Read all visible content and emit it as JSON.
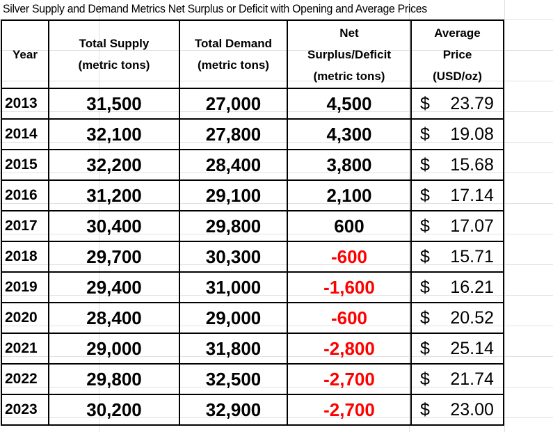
{
  "title": "Silver Supply and Demand Metrics Net Surplus or Deficit with Opening and Average Prices",
  "headers": {
    "year": "Year",
    "supply": [
      "Total Supply",
      "(metric tons)"
    ],
    "demand": [
      "Total Demand",
      "(metric tons)"
    ],
    "net": [
      "Net",
      "Surplus/Deficit",
      "(metric tons)"
    ],
    "price": [
      "Average",
      "Price",
      "(USD/oz)"
    ]
  },
  "currency_symbol": "$",
  "negative_color": "#ff0000",
  "rows": [
    {
      "year": "2013",
      "supply": "31,500",
      "demand": "27,000",
      "net": "4,500",
      "price": "23.79"
    },
    {
      "year": "2014",
      "supply": "32,100",
      "demand": "27,800",
      "net": "4,300",
      "price": "19.08"
    },
    {
      "year": "2015",
      "supply": "32,200",
      "demand": "28,400",
      "net": "3,800",
      "price": "15.68"
    },
    {
      "year": "2016",
      "supply": "31,200",
      "demand": "29,100",
      "net": "2,100",
      "price": "17.14"
    },
    {
      "year": "2017",
      "supply": "30,400",
      "demand": "29,800",
      "net": "600",
      "price": "17.07"
    },
    {
      "year": "2018",
      "supply": "29,700",
      "demand": "30,300",
      "net": "-600",
      "price": "15.71"
    },
    {
      "year": "2019",
      "supply": "29,400",
      "demand": "31,000",
      "net": "-1,600",
      "price": "16.21"
    },
    {
      "year": "2020",
      "supply": "28,400",
      "demand": "29,000",
      "net": "-600",
      "price": "20.52"
    },
    {
      "year": "2021",
      "supply": "29,000",
      "demand": "31,800",
      "net": "-2,800",
      "price": "25.14"
    },
    {
      "year": "2022",
      "supply": "29,800",
      "demand": "32,500",
      "net": "-2,700",
      "price": "21.74"
    },
    {
      "year": "2023",
      "supply": "30,200",
      "demand": "32,900",
      "net": "-2,700",
      "price": "23.00"
    }
  ]
}
